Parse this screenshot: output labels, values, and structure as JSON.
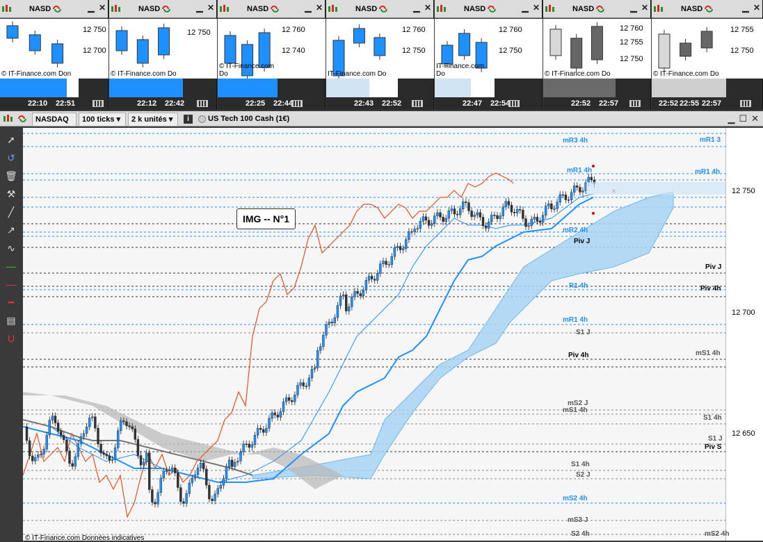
{
  "minis": [
    {
      "symbol": "NASD",
      "labels": [
        "12 750",
        "12 700"
      ],
      "times": [
        "22:10",
        "22:51"
      ],
      "credit": "© IT-Finance.com  Don",
      "progress": 0.85,
      "bar_color": "#1e90ff"
    },
    {
      "symbol": "NASD",
      "labels": [
        "12 750"
      ],
      "times": [
        "22:12",
        "22:42"
      ],
      "credit": "© IT-Finance.com  Do",
      "progress": 1.0,
      "bar_color": "#1e90ff"
    },
    {
      "symbol": "NASD",
      "labels": [
        "12 760",
        "12 740"
      ],
      "times": [
        "22:25",
        "22:44"
      ],
      "credit": "© IT-Finance.com  Do",
      "progress": 1.0,
      "bar_color": "#1e90ff"
    },
    {
      "symbol": "NASD",
      "labels": [
        "12 760",
        "12 750"
      ],
      "times": [
        "22:43",
        "22:52"
      ],
      "credit": "IT-Finance.com  Do",
      "progress": 0.6,
      "bar_color": "#d0e4f4"
    },
    {
      "symbol": "NASD",
      "labels": [
        "12 760",
        "12 750"
      ],
      "times": [
        "22:47",
        "22:54"
      ],
      "credit": "IT-Finance.com  Do",
      "progress": 0.6,
      "bar_color": "#d0e4f4"
    },
    {
      "symbol": "NASD",
      "labels": [
        "12 760",
        "12 755",
        "12 750"
      ],
      "times": [
        "22:52",
        "22:57"
      ],
      "credit": "© IT-Finance.com  Do",
      "progress": 1.0,
      "bar_color": "#6a6a6a"
    },
    {
      "symbol": "NASD",
      "labels": [
        "12 755",
        "12 750"
      ],
      "times": [
        "22:52",
        "22:55",
        "22:57"
      ],
      "credit": "© IT-Finance.com  Do",
      "progress": 1.0,
      "bar_color": "#cfcfcf"
    }
  ],
  "main": {
    "symbol": "NASDAQ",
    "ticks": "100 ticks",
    "units": "2 k unités",
    "instrument": "US Tech 100 Cash (1€)",
    "img_label": "IMG -- N°1",
    "axis_labels": [
      "12 750",
      "12 700",
      "12 650"
    ],
    "footer": "© IT-Finance.com  Données indicatives"
  },
  "levels": [
    {
      "text": "mR3 4h",
      "color": "#1e90ff"
    },
    {
      "text": "mR1 4h",
      "color": "#1e90ff"
    },
    {
      "text": "mR2 4h",
      "color": "#1e90ff"
    },
    {
      "text": "Piv J",
      "color": "#000000"
    },
    {
      "text": "R1 4h",
      "color": "#1e90ff"
    },
    {
      "text": "mR1 4h",
      "color": "#1e90ff"
    },
    {
      "text": "S1 J",
      "color": "#555555"
    },
    {
      "text": "Piv 4h",
      "color": "#000000"
    },
    {
      "text": "mS2 J",
      "color": "#555555"
    },
    {
      "text": "mS1 4h",
      "color": "#555555"
    },
    {
      "text": "S1 4h",
      "color": "#555555"
    },
    {
      "text": "S2 J",
      "color": "#555555"
    },
    {
      "text": "mS2 4h",
      "color": "#1e90ff"
    },
    {
      "text": "mS3 J",
      "color": "#555555"
    },
    {
      "text": "S2 4h",
      "color": "#555555"
    },
    {
      "text": "mR1 3",
      "color": "#1e90ff"
    },
    {
      "text": "mR1 4h",
      "color": "#1e90ff"
    },
    {
      "text": "Piv J",
      "color": "#000000"
    },
    {
      "text": "Piv 4h",
      "color": "#000000"
    },
    {
      "text": "mS1 4h",
      "color": "#555555"
    },
    {
      "text": "S1 4h",
      "color": "#555555"
    },
    {
      "text": "S1 J",
      "color": "#555555"
    },
    {
      "text": "Piv S",
      "color": "#000000"
    },
    {
      "text": "mS2 4h",
      "color": "#555555"
    }
  ],
  "tools": [
    "pointer-icon",
    "undo-icon",
    "trash-icon",
    "tools-icon",
    "line-icon",
    "arrow-icon",
    "node-icon",
    "green-line-icon",
    "red-line-icon",
    "red-hline-icon",
    "ruler-icon",
    "magnet-icon"
  ]
}
